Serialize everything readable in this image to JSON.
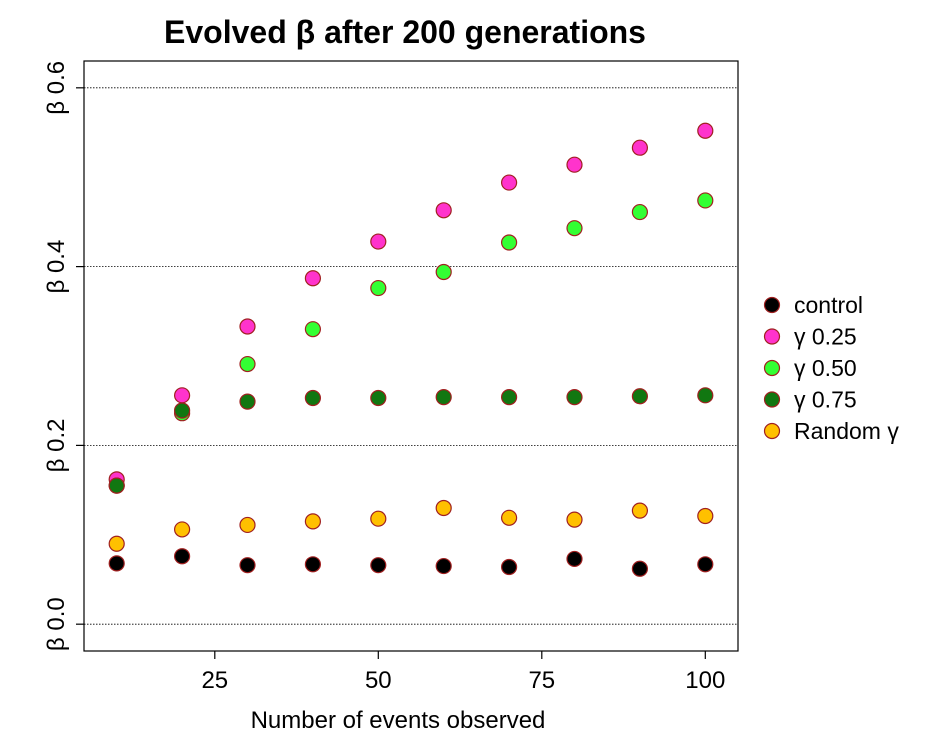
{
  "chart_data": {
    "type": "scatter",
    "title": "Evolved β after 200 generations",
    "xlabel": "Number of events observed",
    "ylabel": "",
    "xlim": [
      5,
      105
    ],
    "ylim": [
      -0.03,
      0.63
    ],
    "x_ticks": [
      25,
      50,
      75,
      100
    ],
    "x_tick_labels": [
      "25",
      "50",
      "75",
      "100"
    ],
    "y_ticks": [
      0.0,
      0.2,
      0.4,
      0.6
    ],
    "y_tick_labels": [
      "β 0.0",
      "β 0.2",
      "β 0.4",
      "β 0.6"
    ],
    "grid": "horizontal dotted",
    "legend_position": "right",
    "x": [
      10,
      20,
      30,
      40,
      50,
      60,
      70,
      80,
      90,
      100
    ],
    "series": [
      {
        "name": "control",
        "color": "#000000",
        "values": [
          0.068,
          0.076,
          0.066,
          0.067,
          0.066,
          0.065,
          0.064,
          0.073,
          0.062,
          0.067
        ]
      },
      {
        "name": "γ 0.25",
        "color": "#ff33cc",
        "values": [
          0.162,
          0.256,
          0.333,
          0.387,
          0.428,
          0.463,
          0.494,
          0.514,
          0.533,
          0.552
        ]
      },
      {
        "name": "γ 0.50",
        "color": "#33ff33",
        "values": [
          0.155,
          0.236,
          0.291,
          0.33,
          0.376,
          0.394,
          0.427,
          0.443,
          0.461,
          0.474
        ]
      },
      {
        "name": "γ 0.75",
        "color": "#117711",
        "values": [
          0.155,
          0.239,
          0.249,
          0.253,
          0.253,
          0.254,
          0.254,
          0.254,
          0.255,
          0.256
        ]
      },
      {
        "name": "Random γ",
        "color": "#ffc000",
        "values": [
          0.09,
          0.106,
          0.111,
          0.115,
          0.118,
          0.13,
          0.119,
          0.117,
          0.127,
          0.121
        ]
      }
    ]
  }
}
